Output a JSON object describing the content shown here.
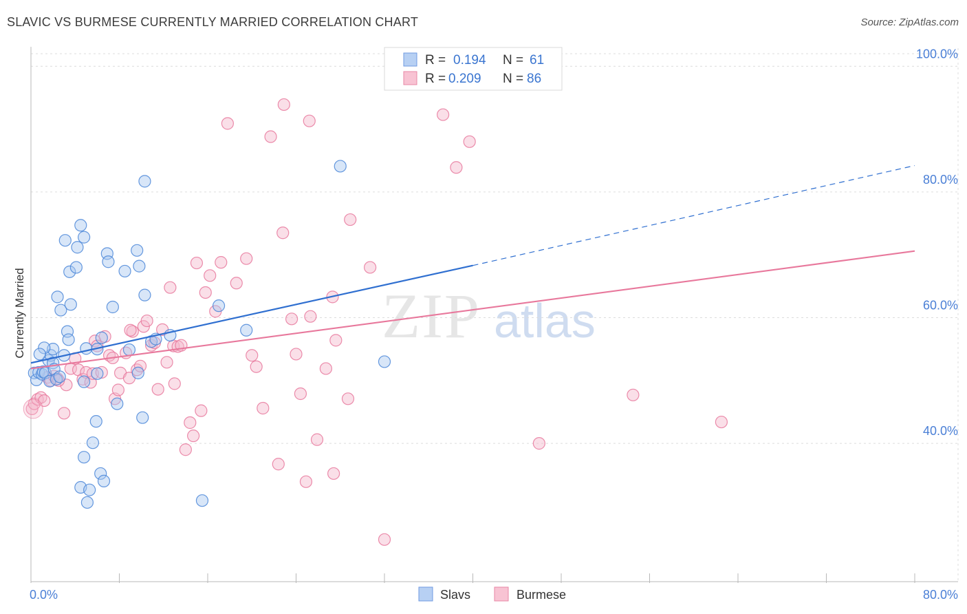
{
  "header": {
    "title": "SLAVIC VS BURMESE CURRENTLY MARRIED CORRELATION CHART",
    "source": "Source: ZipAtlas.com"
  },
  "watermark": {
    "zip": "ZIP",
    "atlas": "atlas"
  },
  "legend": {
    "r_label": "R =",
    "n_label": "N =",
    "rows": [
      {
        "name": "Slavs",
        "r": "0.194",
        "n": "61"
      },
      {
        "name": "Burmese",
        "r": "0.209",
        "n": "86"
      }
    ]
  },
  "chart_data": {
    "type": "scatter",
    "title": "SLAVIC VS BURMESE CURRENTLY MARRIED CORRELATION CHART",
    "xlabel": "",
    "ylabel": "Currently Married",
    "xlim": [
      0,
      80
    ],
    "ylim": [
      18,
      102
    ],
    "x_tick_labels": [
      "0.0%",
      "80.0%"
    ],
    "y_ticks": [
      40,
      60,
      80,
      100
    ],
    "y_tick_labels": [
      "40.0%",
      "60.0%",
      "80.0%",
      "100.0%"
    ],
    "grid": true,
    "colors": {
      "Slavs": "#4a86d8",
      "Burmese": "#e8789c",
      "tick_text": "#4a7fd6"
    },
    "series": [
      {
        "name": "Slavs",
        "color": "#4a86d8",
        "fill": "#a9c8f0",
        "trend": {
          "x0": 0,
          "y0": 52.8,
          "x1": 40,
          "y1": 68.3,
          "x_end": 80,
          "y_end": 84.2,
          "dashed_from": 40
        },
        "points": [
          [
            0.3,
            51.2
          ],
          [
            0.5,
            50.1
          ],
          [
            0.7,
            51.3
          ],
          [
            1.0,
            51.0
          ],
          [
            1.1,
            51.4
          ],
          [
            1.3,
            51.2
          ],
          [
            1.6,
            53.2
          ],
          [
            1.7,
            49.9
          ],
          [
            1.8,
            54.0
          ],
          [
            2.0,
            52.8
          ],
          [
            2.1,
            51.8
          ],
          [
            2.3,
            50.2
          ],
          [
            2.6,
            50.6
          ],
          [
            2.4,
            63.3
          ],
          [
            2.7,
            61.2
          ],
          [
            3.0,
            54.0
          ],
          [
            3.1,
            72.3
          ],
          [
            3.3,
            57.8
          ],
          [
            3.5,
            67.3
          ],
          [
            3.6,
            62.1
          ],
          [
            4.1,
            68.0
          ],
          [
            4.2,
            71.2
          ],
          [
            4.5,
            74.7
          ],
          [
            4.8,
            72.8
          ],
          [
            4.5,
            33.0
          ],
          [
            4.8,
            49.8
          ],
          [
            5.1,
            30.6
          ],
          [
            5.3,
            32.6
          ],
          [
            5.6,
            40.1
          ],
          [
            5.9,
            43.5
          ],
          [
            6.0,
            51.1
          ],
          [
            6.4,
            56.8
          ],
          [
            6.3,
            35.2
          ],
          [
            6.6,
            34.0
          ],
          [
            6.9,
            70.2
          ],
          [
            7.0,
            68.9
          ],
          [
            7.4,
            61.7
          ],
          [
            7.8,
            46.3
          ],
          [
            8.5,
            67.4
          ],
          [
            8.9,
            54.9
          ],
          [
            9.6,
            70.7
          ],
          [
            9.8,
            68.2
          ],
          [
            9.7,
            51.2
          ],
          [
            10.1,
            44.1
          ],
          [
            10.3,
            81.7
          ],
          [
            10.3,
            63.6
          ],
          [
            10.9,
            56.2
          ],
          [
            11.3,
            56.6
          ],
          [
            12.6,
            57.2
          ],
          [
            15.5,
            30.9
          ],
          [
            17.0,
            61.9
          ],
          [
            19.5,
            58.0
          ],
          [
            28.0,
            84.1
          ],
          [
            32.0,
            53.0
          ],
          [
            4.8,
            37.8
          ],
          [
            5.0,
            55.1
          ],
          [
            6.0,
            55.0
          ],
          [
            3.4,
            56.5
          ],
          [
            2.0,
            55.0
          ],
          [
            1.2,
            55.2
          ],
          [
            0.8,
            54.2
          ]
        ]
      },
      {
        "name": "Burmese",
        "color": "#e8789c",
        "fill": "#f5b8cb",
        "trend": {
          "x0": 0,
          "y0": 51.9,
          "x1": 80,
          "y1": 70.6
        },
        "points": [
          [
            0.1,
            45.5
          ],
          [
            0.3,
            46.3
          ],
          [
            0.6,
            47.0
          ],
          [
            0.9,
            47.3
          ],
          [
            1.2,
            46.8
          ],
          [
            1.5,
            50.5
          ],
          [
            1.8,
            50.0
          ],
          [
            2.1,
            50.7
          ],
          [
            2.4,
            50.3
          ],
          [
            3.0,
            44.8
          ],
          [
            3.2,
            49.3
          ],
          [
            3.6,
            51.9
          ],
          [
            4.0,
            53.5
          ],
          [
            4.3,
            51.7
          ],
          [
            4.7,
            50.2
          ],
          [
            5.0,
            51.3
          ],
          [
            5.4,
            49.7
          ],
          [
            5.6,
            51.1
          ],
          [
            5.8,
            56.3
          ],
          [
            6.0,
            55.5
          ],
          [
            6.4,
            51.3
          ],
          [
            6.7,
            57.0
          ],
          [
            7.1,
            54.0
          ],
          [
            7.4,
            53.6
          ],
          [
            7.6,
            47.1
          ],
          [
            7.9,
            48.5
          ],
          [
            8.1,
            51.2
          ],
          [
            8.6,
            54.4
          ],
          [
            8.9,
            50.4
          ],
          [
            9.2,
            57.8
          ],
          [
            9.6,
            51.7
          ],
          [
            9.9,
            52.3
          ],
          [
            10.2,
            58.6
          ],
          [
            10.5,
            59.5
          ],
          [
            10.9,
            55.6
          ],
          [
            11.2,
            56.0
          ],
          [
            11.5,
            48.6
          ],
          [
            11.9,
            58.1
          ],
          [
            12.3,
            52.9
          ],
          [
            12.6,
            64.8
          ],
          [
            12.9,
            55.5
          ],
          [
            13.3,
            55.4
          ],
          [
            13.6,
            55.6
          ],
          [
            14.0,
            39.0
          ],
          [
            14.4,
            43.3
          ],
          [
            14.7,
            41.2
          ],
          [
            15.0,
            68.7
          ],
          [
            15.4,
            45.2
          ],
          [
            15.8,
            64.0
          ],
          [
            16.2,
            66.7
          ],
          [
            16.7,
            61.0
          ],
          [
            17.2,
            68.8
          ],
          [
            17.8,
            90.9
          ],
          [
            18.6,
            65.5
          ],
          [
            19.5,
            69.4
          ],
          [
            20.4,
            52.2
          ],
          [
            21.0,
            45.6
          ],
          [
            21.7,
            88.8
          ],
          [
            22.4,
            36.7
          ],
          [
            22.8,
            73.5
          ],
          [
            22.9,
            93.9
          ],
          [
            23.6,
            59.8
          ],
          [
            24.0,
            54.2
          ],
          [
            24.4,
            47.9
          ],
          [
            24.9,
            33.9
          ],
          [
            25.3,
            60.2
          ],
          [
            25.2,
            91.3
          ],
          [
            25.9,
            40.6
          ],
          [
            26.7,
            51.9
          ],
          [
            27.3,
            63.3
          ],
          [
            27.4,
            35.2
          ],
          [
            27.6,
            56.4
          ],
          [
            28.9,
            75.6
          ],
          [
            28.7,
            47.1
          ],
          [
            30.7,
            68.0
          ],
          [
            32.0,
            24.7
          ],
          [
            37.3,
            92.3
          ],
          [
            38.5,
            83.9
          ],
          [
            39.7,
            88.0
          ],
          [
            46.0,
            40.0
          ],
          [
            54.5,
            47.7
          ],
          [
            62.5,
            43.4
          ],
          [
            2.5,
            50.0
          ],
          [
            9.0,
            58.0
          ],
          [
            13.0,
            49.5
          ],
          [
            20.0,
            54.0
          ]
        ]
      }
    ]
  }
}
